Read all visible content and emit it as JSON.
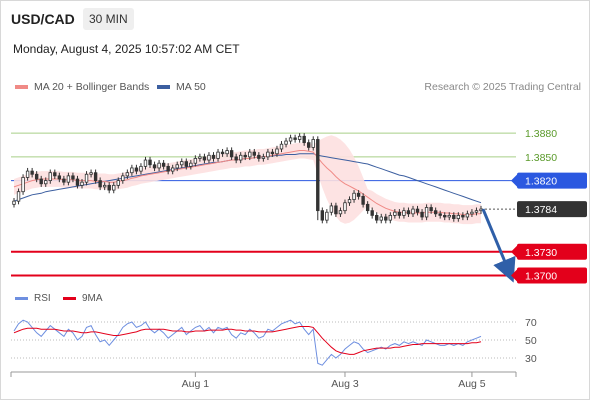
{
  "header": {
    "symbol": "USD/CAD",
    "timeframe": "30 MIN",
    "datetime": "Monday, August 4, 2025 10:57:02 AM CET",
    "credit": "Research © 2025 Trading Central"
  },
  "colors": {
    "ma20": "#f08a86",
    "ma50": "#3c5fa0",
    "bollinger_fill": "#fde0e0",
    "resistance_green": "#a7cf86",
    "pivot_blue": "#2b58e0",
    "support_red": "#e3001b",
    "arrow": "#2f5fa8",
    "last_price_bg": "#333333",
    "rsi": "#6e8fe0",
    "rsi_ma": "#e3001b",
    "candle_up": "#ffffff",
    "candle_down": "#333333"
  },
  "chart_data": [
    {
      "type": "candlestick",
      "legend": [
        {
          "name": "MA 20 + Bollinger Bands",
          "color": "#f08a86"
        },
        {
          "name": "MA 50",
          "color": "#3c5fa0"
        }
      ],
      "legend_position": "top-left",
      "grid": false,
      "x_ticks": [
        "Aug 1",
        "Aug 3",
        "Aug 5"
      ],
      "ylim": [
        1.3688,
        1.3908
      ],
      "price_levels": [
        {
          "value": 1.388,
          "label": "1.3880",
          "kind": "resistance"
        },
        {
          "value": 1.385,
          "label": "1.3850",
          "kind": "resistance"
        },
        {
          "value": 1.382,
          "label": "1.3820",
          "kind": "pivot"
        },
        {
          "value": 1.373,
          "label": "1.3730",
          "kind": "support"
        },
        {
          "value": 1.37,
          "label": "1.3700",
          "kind": "support"
        }
      ],
      "last_price": {
        "value": 1.3784,
        "label": "1.3784"
      },
      "forecast_arrow": {
        "from": 1.3784,
        "to": 1.37,
        "direction": "down"
      },
      "close": [
        1.3794,
        1.3806,
        1.3824,
        1.3832,
        1.3828,
        1.3822,
        1.3816,
        1.382,
        1.383,
        1.3826,
        1.3822,
        1.3818,
        1.3826,
        1.3822,
        1.3814,
        1.3818,
        1.3828,
        1.383,
        1.382,
        1.3812,
        1.3814,
        1.3808,
        1.3814,
        1.382,
        1.3826,
        1.383,
        1.3836,
        1.3832,
        1.3838,
        1.3846,
        1.384,
        1.3836,
        1.3842,
        1.3838,
        1.3832,
        1.3836,
        1.384,
        1.3844,
        1.3838,
        1.3842,
        1.3848,
        1.385,
        1.3846,
        1.3852,
        1.3848,
        1.3856,
        1.3854,
        1.3858,
        1.385,
        1.3846,
        1.3852,
        1.385,
        1.3856,
        1.3852,
        1.3848,
        1.385,
        1.3856,
        1.3854,
        1.386,
        1.3866,
        1.387,
        1.3874,
        1.3872,
        1.3876,
        1.3868,
        1.3862,
        1.3872,
        1.3782,
        1.377,
        1.378,
        1.3788,
        1.3778,
        1.3782,
        1.3792,
        1.3796,
        1.3804,
        1.38,
        1.379,
        1.3782,
        1.3776,
        1.377,
        1.3774,
        1.377,
        1.3776,
        1.378,
        1.3776,
        1.3782,
        1.3778,
        1.3784,
        1.378,
        1.3774,
        1.3786,
        1.3782,
        1.3778,
        1.3776,
        1.3774,
        1.3776,
        1.3772,
        1.3776,
        1.3774,
        1.3778,
        1.378,
        1.3782,
        1.3784
      ],
      "ma20": [
        1.3812,
        1.3814,
        1.3816,
        1.3818,
        1.382,
        1.3821,
        1.3822,
        1.3822,
        1.3822,
        1.3822,
        1.3822,
        1.3821,
        1.3821,
        1.3821,
        1.382,
        1.382,
        1.382,
        1.382,
        1.3819,
        1.3819,
        1.3819,
        1.3818,
        1.3818,
        1.3819,
        1.382,
        1.3821,
        1.3823,
        1.3824,
        1.3826,
        1.3827,
        1.3828,
        1.3829,
        1.383,
        1.3831,
        1.3832,
        1.3833,
        1.3834,
        1.3835,
        1.3836,
        1.3837,
        1.3838,
        1.3839,
        1.384,
        1.3841,
        1.3842,
        1.3843,
        1.3844,
        1.3845,
        1.3846,
        1.3846,
        1.3847,
        1.3848,
        1.3848,
        1.3849,
        1.385,
        1.385,
        1.3851,
        1.3852,
        1.3853,
        1.3854,
        1.3855,
        1.3856,
        1.3857,
        1.3858,
        1.3858,
        1.3857,
        1.3856,
        1.3849,
        1.3842,
        1.3836,
        1.3831,
        1.3825,
        1.382,
        1.3816,
        1.3813,
        1.381,
        1.3807,
        1.3803,
        1.3799,
        1.3795,
        1.3791,
        1.3788,
        1.3785,
        1.3783,
        1.3781,
        1.378,
        1.378,
        1.3779,
        1.3779,
        1.3779,
        1.3779,
        1.378,
        1.378,
        1.378,
        1.378,
        1.3779,
        1.3779,
        1.3778,
        1.3778,
        1.3777,
        1.3777,
        1.3777,
        1.3778,
        1.3778
      ],
      "ma50": [
        1.3794,
        1.3796,
        1.3798,
        1.38,
        1.3802,
        1.3803,
        1.3804,
        1.3806,
        1.3807,
        1.3808,
        1.3809,
        1.381,
        1.3811,
        1.3812,
        1.3813,
        1.3814,
        1.3815,
        1.3816,
        1.3817,
        1.3818,
        1.3819,
        1.382,
        1.3821,
        1.3822,
        1.3823,
        1.3824,
        1.3825,
        1.3826,
        1.3827,
        1.3828,
        1.3829,
        1.383,
        1.3831,
        1.3832,
        1.3833,
        1.3834,
        1.3835,
        1.3836,
        1.3837,
        1.3838,
        1.3839,
        1.384,
        1.3841,
        1.3842,
        1.3843,
        1.3843,
        1.3844,
        1.3845,
        1.3846,
        1.3846,
        1.3847,
        1.3848,
        1.3848,
        1.3849,
        1.385,
        1.385,
        1.3851,
        1.3851,
        1.3852,
        1.3852,
        1.3853,
        1.3853,
        1.3853,
        1.3854,
        1.3854,
        1.3854,
        1.3854,
        1.3852,
        1.3851,
        1.385,
        1.3849,
        1.3848,
        1.3847,
        1.3846,
        1.3845,
        1.3844,
        1.3843,
        1.3842,
        1.3841,
        1.3839,
        1.3837,
        1.3835,
        1.3833,
        1.3831,
        1.3829,
        1.3827,
        1.3826,
        1.3824,
        1.3822,
        1.382,
        1.3818,
        1.3816,
        1.3814,
        1.3812,
        1.381,
        1.3808,
        1.3806,
        1.3804,
        1.3802,
        1.38,
        1.3798,
        1.3796,
        1.3794,
        1.3792
      ]
    },
    {
      "type": "line",
      "legend": [
        {
          "name": "RSI",
          "color": "#6e8fe0"
        },
        {
          "name": "9MA",
          "color": "#e3001b"
        }
      ],
      "ylim": [
        20,
        80
      ],
      "y_ticks": [
        70,
        50,
        30
      ],
      "rsi": [
        60,
        68,
        72,
        70,
        64,
        58,
        54,
        60,
        66,
        62,
        58,
        54,
        62,
        58,
        50,
        54,
        64,
        66,
        56,
        48,
        50,
        44,
        50,
        56,
        64,
        68,
        70,
        64,
        66,
        70,
        62,
        58,
        62,
        58,
        52,
        56,
        60,
        64,
        56,
        60,
        64,
        66,
        60,
        64,
        58,
        64,
        62,
        64,
        56,
        52,
        58,
        56,
        62,
        58,
        52,
        54,
        62,
        60,
        64,
        68,
        70,
        72,
        68,
        70,
        62,
        56,
        62,
        24,
        22,
        28,
        34,
        30,
        34,
        40,
        44,
        48,
        46,
        40,
        36,
        38,
        40,
        42,
        40,
        44,
        46,
        44,
        48,
        46,
        48,
        46,
        44,
        50,
        48,
        46,
        44,
        44,
        46,
        44,
        46,
        44,
        48,
        50,
        52,
        54
      ],
      "rsi_9ma": [
        58,
        60,
        62,
        63,
        63,
        63,
        62,
        62,
        62,
        62,
        61,
        60,
        60,
        60,
        59,
        58,
        58,
        59,
        59,
        58,
        57,
        56,
        55,
        55,
        56,
        57,
        58,
        59,
        61,
        62,
        62,
        62,
        62,
        62,
        61,
        60,
        60,
        60,
        59,
        59,
        60,
        60,
        60,
        61,
        61,
        61,
        61,
        62,
        62,
        61,
        61,
        60,
        60,
        60,
        59,
        59,
        59,
        59,
        60,
        61,
        62,
        63,
        64,
        65,
        65,
        65,
        64,
        58,
        52,
        47,
        42,
        38,
        36,
        35,
        34,
        34,
        36,
        38,
        39,
        40,
        41,
        41,
        41,
        41,
        42,
        42,
        43,
        44,
        45,
        45,
        46,
        46,
        46,
        46,
        46,
        46,
        46,
        46,
        46,
        46,
        46,
        47,
        47,
        48
      ]
    }
  ]
}
